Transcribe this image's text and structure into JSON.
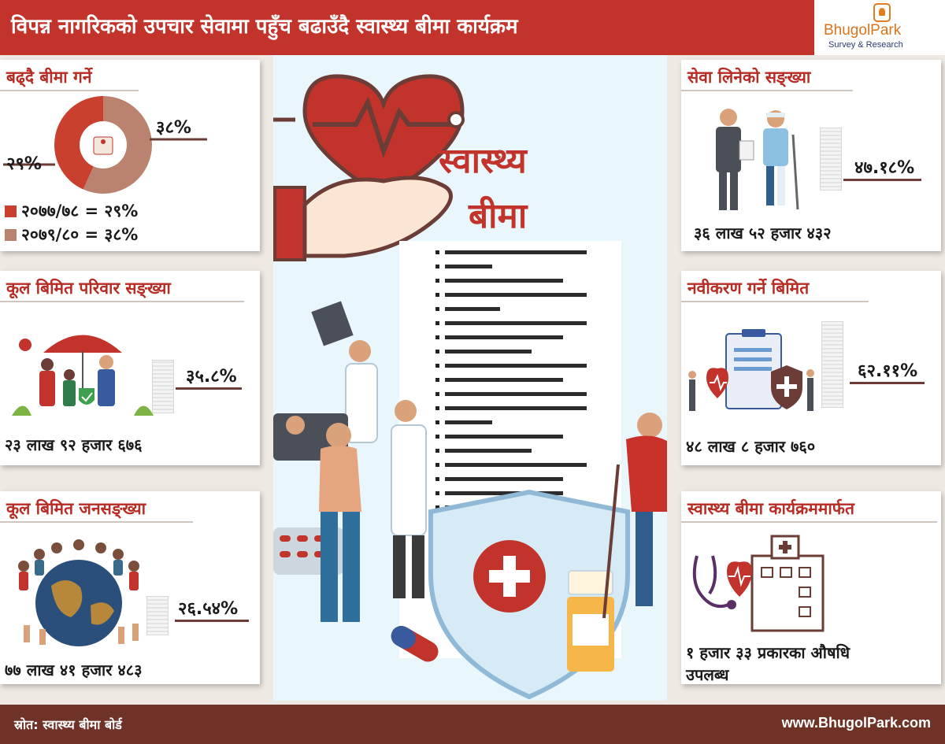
{
  "header": {
    "title": "विपन्न नागरिकको उपचार सेवामा पहुँच बढाउँदै स्वास्थ्य बीमा कार्यक्रम"
  },
  "logo": {
    "name": "BhugolPark",
    "tagline": "Survey & Research"
  },
  "cards": {
    "growth": {
      "title": "बढ्दै बीमा गर्ने",
      "label_left": "२९%",
      "label_right": "३८%",
      "legend": [
        {
          "label": "२०७७/७८ = २९%",
          "color": "#c9402e"
        },
        {
          "label": "२०७९/८० = ३८%",
          "color": "#b98370"
        }
      ]
    },
    "families": {
      "title": "कूल बिमित परिवार सङ्ख्या",
      "percent": "३५.८%",
      "count": "२३ लाख ९२ हजार ६७६"
    },
    "population": {
      "title": "कूल बिमित जनसङ्ख्या",
      "percent": "२६.५४%",
      "count": "७७ लाख ४१ हजार ४८३"
    },
    "service": {
      "title": "सेवा लिनेको सङ्ख्या",
      "percent": "४७.१८%",
      "count": "३६ लाख ५२ हजार ४३२"
    },
    "renewal": {
      "title": "नवीकरण गर्ने बिमित",
      "percent": "६२.११%",
      "count": "४८ लाख ८ हजार ७६०"
    },
    "program": {
      "title": "स्वास्थ्य बीमा कार्यक्रममार्फत",
      "line1": "१ हजार ३३ प्रकारका औषधि",
      "line2": "उपलब्ध"
    }
  },
  "center": {
    "word1": "स्वास्थ्य",
    "word2": "बीमा"
  },
  "chart_data": {
    "type": "pie",
    "categories": [
      "२०७७/७८",
      "२०७९/८०"
    ],
    "values": [
      29,
      38
    ],
    "colors": [
      "#c9402e",
      "#b98370"
    ]
  },
  "footer": {
    "source": "स्रोत: स्वास्थ्य बीमा बोर्ड",
    "url": "www.BhugolPark.com"
  }
}
